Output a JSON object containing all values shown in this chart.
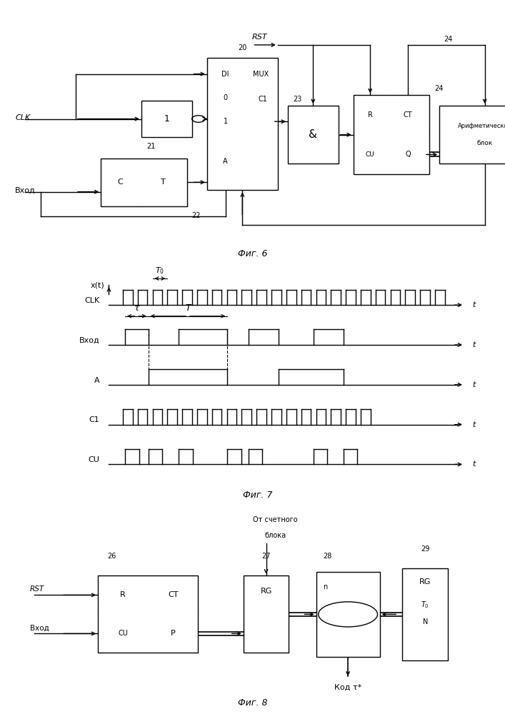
{
  "fig6_caption": "Фиг. 6",
  "fig7_caption": "Фиг. 7",
  "fig8_caption": "Фиг. 8",
  "bg_color": "#ffffff",
  "line_color": "#000000",
  "font_size_caption": 9,
  "font_size_label": 8
}
